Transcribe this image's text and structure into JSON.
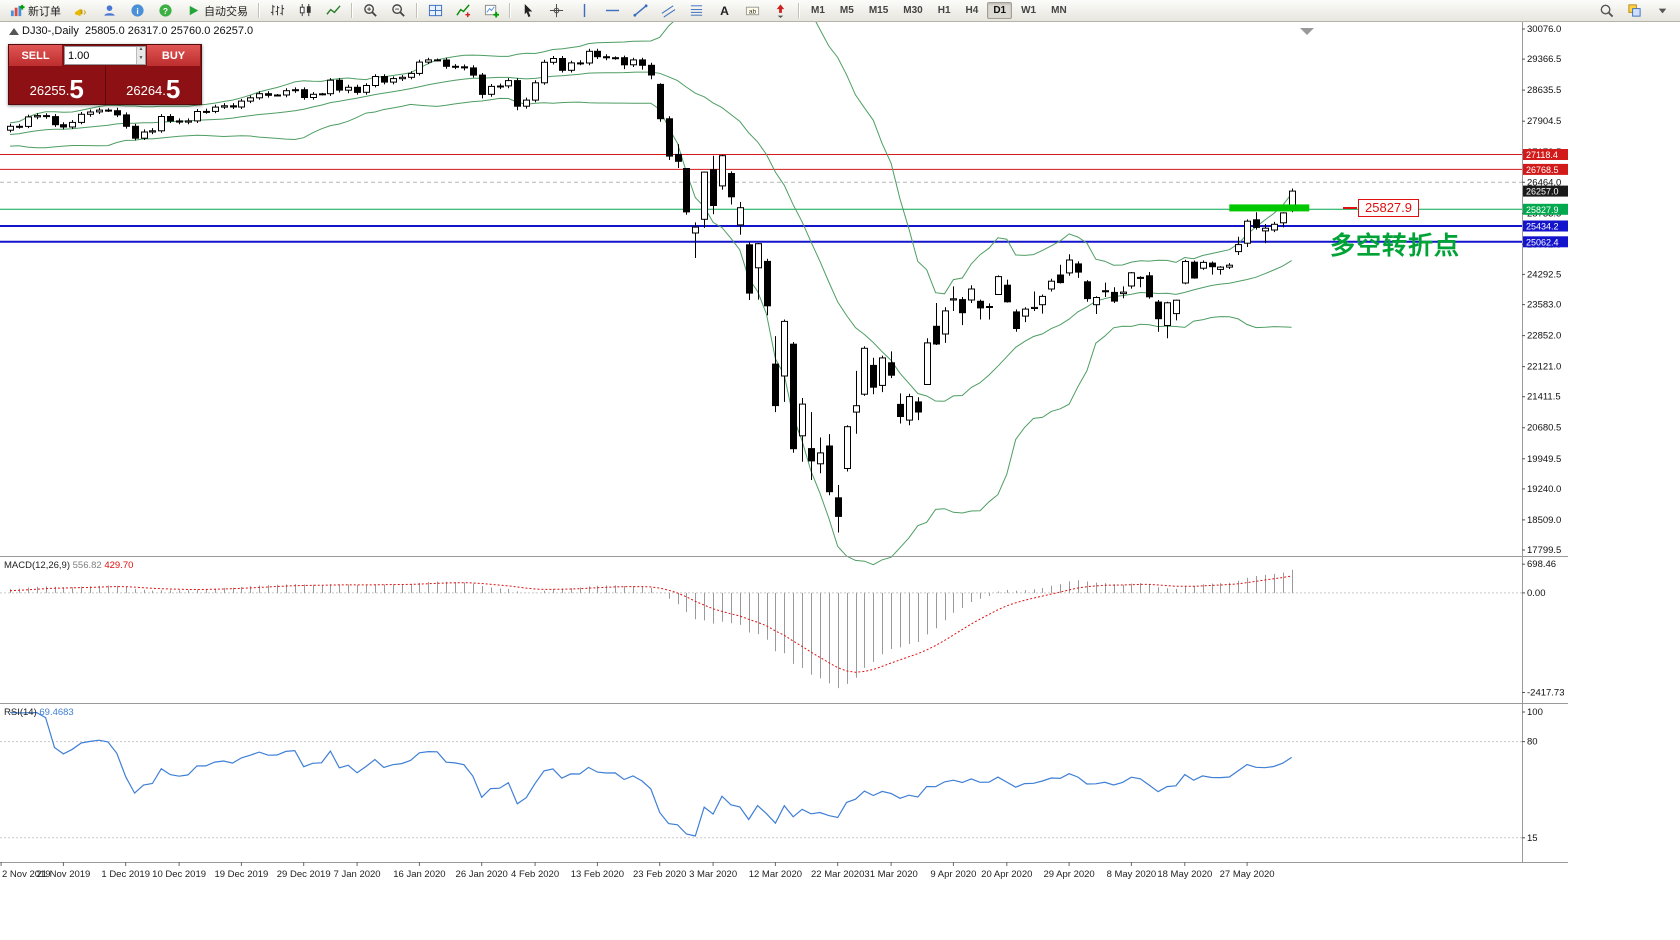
{
  "toolbar": {
    "groups": [
      {
        "name": "trade",
        "items": [
          {
            "name": "new-order-button",
            "icon": "new-order",
            "label": "新订单"
          },
          {
            "name": "alert-icon",
            "icon": "horn"
          },
          {
            "name": "profile-icon",
            "icon": "user"
          },
          {
            "name": "info-icon",
            "icon": "info"
          },
          {
            "name": "help-icon",
            "icon": "help"
          },
          {
            "name": "autotrading-button",
            "icon": "play",
            "label": "自动交易"
          }
        ]
      },
      {
        "name": "chart-type",
        "items": [
          {
            "name": "bar-chart-button",
            "icon": "bars"
          },
          {
            "name": "candlestick-chart-button",
            "icon": "candles"
          },
          {
            "name": "line-chart-button",
            "icon": "line"
          }
        ]
      },
      {
        "name": "zoom",
        "items": [
          {
            "name": "zoom-in-button",
            "icon": "zoom-in"
          },
          {
            "name": "zoom-out-button",
            "icon": "zoom-out"
          }
        ]
      },
      {
        "name": "windows",
        "items": [
          {
            "name": "tile-windows-button",
            "icon": "tile"
          },
          {
            "name": "indicators-button",
            "icon": "indicator"
          },
          {
            "name": "new-chart-button",
            "icon": "new-chart"
          }
        ]
      },
      {
        "name": "drawing",
        "items": [
          {
            "name": "cursor-button",
            "icon": "cursor"
          },
          {
            "name": "crosshair-button",
            "icon": "crosshair"
          },
          {
            "name": "vertical-line-button",
            "icon": "vline"
          },
          {
            "name": "horizontal-line-button",
            "icon": "hline"
          },
          {
            "name": "trendline-button",
            "icon": "trend"
          },
          {
            "name": "channel-button",
            "icon": "channel"
          },
          {
            "name": "fibonacci-button",
            "icon": "fib"
          },
          {
            "name": "text-button",
            "icon": "textA"
          },
          {
            "name": "text-label-button",
            "icon": "label"
          },
          {
            "name": "arrows-button",
            "icon": "arrow"
          }
        ]
      }
    ],
    "timeframes": [
      {
        "label": "M1"
      },
      {
        "label": "M5"
      },
      {
        "label": "M15"
      },
      {
        "label": "M30"
      },
      {
        "label": "H1"
      },
      {
        "label": "H4"
      },
      {
        "label": "D1",
        "active": true
      },
      {
        "label": "W1"
      },
      {
        "label": "MN"
      }
    ],
    "right_items": [
      {
        "name": "search-button",
        "icon": "search"
      },
      {
        "name": "windows-list-button",
        "icon": "windows"
      },
      {
        "name": "more-button",
        "icon": "caret"
      }
    ]
  },
  "trade_panel": {
    "sell_label": "SELL",
    "buy_label": "BUY",
    "volume": "1.00",
    "sell_price": "26255.5",
    "buy_price": "26264.5",
    "sell_main": "26255.",
    "sell_pip": "5",
    "buy_main": "26264.",
    "buy_pip": "5"
  },
  "colors": {
    "resistance_red": "#d21a1a",
    "support_green": "#00a84e",
    "support_blue": "#1414cc",
    "bollinger": "#4e9e63",
    "macd_hist": "#9a9a9a",
    "macd_signal": "#dd1111",
    "rsi": "#3f7fd6",
    "highlight_green": "#00c800",
    "annotation_green": "#00a335",
    "annotation_red": "#e01010",
    "current_price_bg": "#1a1a1a",
    "dashed_gray": "#b5b5b5"
  },
  "chart_data": {
    "type": "candlestick",
    "header": "DJ30-,Daily  25805.0 26317.0 25760.0 26257.0",
    "symbol_period": "DJ30-,Daily",
    "ohlc_header": [
      25805.0,
      26317.0,
      25760.0,
      26257.0
    ],
    "visible_from": 8,
    "price_axis": {
      "ticks": [
        30076.0,
        29366.5,
        28635.5,
        27904.5,
        27173.5,
        26464.0,
        25733.5,
        25002.5,
        24292.5,
        23583.0,
        22852.0,
        22121.0,
        21411.5,
        20680.5,
        19949.5,
        19240.0,
        18509.0,
        17799.5
      ],
      "current": {
        "v": 26257.0,
        "label": "26257.0"
      }
    },
    "hlines": [
      {
        "price": 27118.4,
        "label": "27118.4",
        "colorKey": "resistance_red",
        "width": 1,
        "style": "solid"
      },
      {
        "price": 26768.5,
        "label": "26768.5",
        "colorKey": "resistance_red",
        "width": 1,
        "style": "solid"
      },
      {
        "price": 26464.0,
        "label": "",
        "colorKey": "dashed_gray",
        "width": 1,
        "style": "dashed"
      },
      {
        "price": 25827.9,
        "label": "25827.9",
        "colorKey": "support_green",
        "width": 1,
        "style": "solid"
      },
      {
        "price": 25434.2,
        "label": "25434.2",
        "colorKey": "support_blue",
        "width": 2,
        "style": "solid"
      },
      {
        "price": 25062.4,
        "label": "25062.4",
        "colorKey": "support_blue",
        "width": 2,
        "style": "solid"
      }
    ],
    "green_bar": {
      "i_from": 145,
      "price": 25860,
      "width": 80,
      "height": 7
    },
    "annotations": [
      {
        "type": "price_label",
        "text": "25827.9",
        "color": "#e01010"
      },
      {
        "type": "text",
        "text": "多空转折点",
        "color": "#00a335"
      }
    ],
    "bollinger": {
      "period": 20,
      "deviation": 2
    },
    "macd": {
      "label": "MACD(12,26,9)",
      "value_main": "556.82",
      "value_signal": "429.70",
      "fast": 12,
      "slow": 26,
      "signal": 9,
      "scale": [
        {
          "v": 698.46,
          "label": "698.46"
        },
        {
          "v": 0,
          "label": "0.00"
        },
        {
          "v": -2417.73,
          "label": "-2417.73"
        }
      ],
      "range": [
        -2600,
        800
      ]
    },
    "rsi": {
      "label": "RSI(14)",
      "value": "69.4683",
      "period": 14,
      "scale": [
        {
          "v": 100,
          "label": "100"
        },
        {
          "v": 80,
          "label": "80"
        },
        {
          "v": 15,
          "label": "15"
        }
      ],
      "levels": [
        80,
        15
      ],
      "range": [
        0,
        100
      ]
    },
    "time_axis": [
      {
        "label": "2 Nov 2019",
        "i": 7
      },
      {
        "label": "21 Nov 2019",
        "i": 14
      },
      {
        "label": "1 Dec 2019",
        "i": 21
      },
      {
        "label": "10 Dec 2019",
        "i": 27
      },
      {
        "label": "19 Dec 2019",
        "i": 34
      },
      {
        "label": "29 Dec 2019",
        "i": 41
      },
      {
        "label": "7 Jan 2020",
        "i": 47
      },
      {
        "label": "16 Jan 2020",
        "i": 54
      },
      {
        "label": "26 Jan 2020",
        "i": 61
      },
      {
        "label": "4 Feb 2020",
        "i": 67
      },
      {
        "label": "13 Feb 2020",
        "i": 74
      },
      {
        "label": "23 Feb 2020",
        "i": 81
      },
      {
        "label": "3 Mar 2020",
        "i": 87
      },
      {
        "label": "12 Mar 2020",
        "i": 94
      },
      {
        "label": "22 Mar 2020",
        "i": 101
      },
      {
        "label": "31 Mar 2020",
        "i": 107
      },
      {
        "label": "9 Apr 2020",
        "i": 114
      },
      {
        "label": "20 Apr 2020",
        "i": 120
      },
      {
        "label": "29 Apr 2020",
        "i": 127
      },
      {
        "label": "8 May 2020",
        "i": 134
      },
      {
        "label": "18 May 2020",
        "i": 140
      },
      {
        "label": "27 May 2020",
        "i": 147
      }
    ],
    "candles": [
      [
        27300,
        27390,
        27240,
        27347
      ],
      [
        27347,
        27510,
        27300,
        27462
      ],
      [
        27462,
        27550,
        27410,
        27493
      ],
      [
        27493,
        27550,
        27440,
        27492
      ],
      [
        27492,
        27720,
        27450,
        27675
      ],
      [
        27675,
        27740,
        27620,
        27681
      ],
      [
        27681,
        27750,
        27630,
        27691
      ],
      [
        27691,
        27750,
        27640,
        27692
      ],
      [
        27692,
        27840,
        27640,
        27784
      ],
      [
        27784,
        27840,
        27730,
        27782
      ],
      [
        27782,
        28060,
        27740,
        28005
      ],
      [
        28005,
        28090,
        27950,
        28036
      ],
      [
        28036,
        28090,
        27960,
        28012
      ],
      [
        28012,
        28070,
        27770,
        27821
      ],
      [
        27821,
        27880,
        27710,
        27766
      ],
      [
        27766,
        27930,
        27720,
        27875
      ],
      [
        27875,
        28120,
        27830,
        28066
      ],
      [
        28066,
        28180,
        28010,
        28121
      ],
      [
        28121,
        28220,
        28070,
        28164
      ],
      [
        28164,
        28210,
        28120,
        28150
      ],
      [
        28150,
        28220,
        28000,
        28051
      ],
      [
        28051,
        28110,
        27730,
        27783
      ],
      [
        27783,
        27840,
        27450,
        27503
      ],
      [
        27503,
        27710,
        27460,
        27650
      ],
      [
        27650,
        27740,
        27600,
        27678
      ],
      [
        27678,
        28070,
        27630,
        28015
      ],
      [
        28015,
        28070,
        27860,
        27910
      ],
      [
        27910,
        27970,
        27830,
        27882
      ],
      [
        27882,
        27970,
        27830,
        27911
      ],
      [
        27911,
        28190,
        27860,
        28132
      ],
      [
        28132,
        28200,
        28080,
        28135
      ],
      [
        28135,
        28290,
        28090,
        28236
      ],
      [
        28236,
        28330,
        28190,
        28267
      ],
      [
        28267,
        28330,
        28190,
        28239
      ],
      [
        28239,
        28430,
        28190,
        28377
      ],
      [
        28377,
        28510,
        28330,
        28455
      ],
      [
        28455,
        28610,
        28410,
        28552
      ],
      [
        28552,
        28610,
        28460,
        28515
      ],
      [
        28515,
        28545,
        28490,
        28520
      ],
      [
        28520,
        28680,
        28470,
        28621
      ],
      [
        28621,
        28700,
        28570,
        28645
      ],
      [
        28645,
        28700,
        28410,
        28462
      ],
      [
        28462,
        28590,
        28410,
        28538
      ],
      [
        28538,
        28570,
        28510,
        28550
      ],
      [
        28550,
        28920,
        28500,
        28869
      ],
      [
        28869,
        28920,
        28580,
        28635
      ],
      [
        28635,
        28760,
        28560,
        28703
      ],
      [
        28703,
        28760,
        28530,
        28584
      ],
      [
        28584,
        28800,
        28530,
        28745
      ],
      [
        28745,
        29010,
        28700,
        28957
      ],
      [
        28957,
        29010,
        28770,
        28824
      ],
      [
        28824,
        28960,
        28770,
        28907
      ],
      [
        28907,
        28990,
        28850,
        28939
      ],
      [
        28939,
        29080,
        28890,
        29030
      ],
      [
        29030,
        29350,
        28980,
        29297
      ],
      [
        29297,
        29400,
        29250,
        29348
      ],
      [
        29348,
        29380,
        29310,
        29345
      ],
      [
        29345,
        29400,
        29140,
        29196
      ],
      [
        29196,
        29250,
        29130,
        29186
      ],
      [
        29186,
        29240,
        29100,
        29160
      ],
      [
        29160,
        29220,
        28930,
        28990
      ],
      [
        28990,
        29040,
        28440,
        28536
      ],
      [
        28536,
        28780,
        28480,
        28723
      ],
      [
        28723,
        28790,
        28660,
        28734
      ],
      [
        28734,
        28920,
        28680,
        28859
      ],
      [
        28859,
        28920,
        28160,
        28256
      ],
      [
        28256,
        28460,
        28200,
        28400
      ],
      [
        28400,
        28870,
        28350,
        28808
      ],
      [
        28808,
        29350,
        28760,
        29291
      ],
      [
        29291,
        29440,
        29240,
        29380
      ],
      [
        29380,
        29440,
        29050,
        29103
      ],
      [
        29103,
        29330,
        29050,
        29277
      ],
      [
        29277,
        29340,
        29220,
        29276
      ],
      [
        29276,
        29610,
        29220,
        29551
      ],
      [
        29551,
        29610,
        29370,
        29423
      ],
      [
        29423,
        29480,
        29340,
        29398
      ],
      [
        29398,
        29430,
        29350,
        29400
      ],
      [
        29400,
        29450,
        29130,
        29232
      ],
      [
        29232,
        29400,
        29180,
        29348
      ],
      [
        29348,
        29400,
        29120,
        29220
      ],
      [
        29220,
        29280,
        28890,
        28992
      ],
      [
        28770,
        28800,
        27890,
        27961
      ],
      [
        27960,
        28020,
        26990,
        27081
      ],
      [
        27120,
        27360,
        26800,
        26958
      ],
      [
        26790,
        26800,
        25700,
        25767
      ],
      [
        25270,
        25520,
        24680,
        25409
      ],
      [
        25590,
        26710,
        25390,
        26703
      ],
      [
        26760,
        27090,
        25710,
        25917
      ],
      [
        26380,
        27110,
        26290,
        27091
      ],
      [
        26670,
        26720,
        25940,
        26121
      ],
      [
        25460,
        26000,
        25230,
        25865
      ],
      [
        24990,
        25050,
        23690,
        23851
      ],
      [
        24450,
        25030,
        23700,
        25018
      ],
      [
        24600,
        24660,
        23330,
        23553
      ],
      [
        22180,
        22840,
        21050,
        21201
      ],
      [
        21900,
        23230,
        21290,
        23186
      ],
      [
        22650,
        22700,
        20090,
        20188
      ],
      [
        20490,
        21380,
        19880,
        21237
      ],
      [
        20190,
        21050,
        19450,
        19899
      ],
      [
        19830,
        20450,
        19610,
        20087
      ],
      [
        20250,
        20530,
        19090,
        19174
      ],
      [
        19030,
        19330,
        18213,
        18592
      ],
      [
        19720,
        20740,
        19650,
        20705
      ],
      [
        21050,
        22020,
        20540,
        21200
      ],
      [
        21470,
        22600,
        21430,
        22552
      ],
      [
        22150,
        22330,
        21470,
        21637
      ],
      [
        21680,
        22380,
        21520,
        22327
      ],
      [
        22210,
        22480,
        21850,
        21917
      ],
      [
        21230,
        21490,
        20780,
        20944
      ],
      [
        20860,
        21480,
        20740,
        21413
      ],
      [
        21290,
        21400,
        20860,
        21053
      ],
      [
        21700,
        22790,
        21690,
        22680
      ],
      [
        23070,
        23620,
        22630,
        22654
      ],
      [
        22890,
        23520,
        22680,
        23434
      ],
      [
        23690,
        24010,
        23430,
        23719
      ],
      [
        23700,
        23760,
        23100,
        23391
      ],
      [
        23690,
        24040,
        23620,
        23950
      ],
      [
        23660,
        23700,
        23230,
        23504
      ],
      [
        23520,
        23610,
        23230,
        23537
      ],
      [
        23820,
        24270,
        23810,
        24242
      ],
      [
        24040,
        24170,
        23630,
        23650
      ],
      [
        23410,
        23470,
        22940,
        23018
      ],
      [
        23310,
        23520,
        23170,
        23476
      ],
      [
        23490,
        23890,
        23430,
        23515
      ],
      [
        23580,
        23820,
        23370,
        23775
      ],
      [
        23950,
        24190,
        23890,
        24134
      ],
      [
        24280,
        24520,
        24080,
        24102
      ],
      [
        24330,
        24770,
        24260,
        24634
      ],
      [
        24540,
        24600,
        24210,
        24346
      ],
      [
        24120,
        24160,
        23650,
        23724
      ],
      [
        23580,
        23780,
        23360,
        23749
      ],
      [
        23910,
        24100,
        23760,
        23883
      ],
      [
        23870,
        23990,
        23620,
        23665
      ],
      [
        23840,
        24010,
        23730,
        23876
      ],
      [
        24020,
        24350,
        23960,
        24331
      ],
      [
        24200,
        24250,
        23990,
        24222
      ],
      [
        24260,
        24350,
        23720,
        23765
      ],
      [
        23640,
        23690,
        22940,
        23248
      ],
      [
        23090,
        23650,
        22790,
        23625
      ],
      [
        23370,
        23700,
        23210,
        23685
      ],
      [
        24090,
        24640,
        24060,
        24597
      ],
      [
        24580,
        24620,
        24190,
        24207
      ],
      [
        24440,
        24620,
        24400,
        24576
      ],
      [
        24560,
        24600,
        24290,
        24474
      ],
      [
        24410,
        24490,
        24290,
        24465
      ],
      [
        24465,
        24560,
        24420,
        24510
      ],
      [
        24830,
        25180,
        24750,
        24995
      ],
      [
        25030,
        25590,
        24940,
        25548
      ],
      [
        25580,
        25760,
        25350,
        25401
      ],
      [
        25320,
        25480,
        25030,
        25383
      ],
      [
        25340,
        25530,
        25290,
        25475
      ],
      [
        25510,
        25760,
        25400,
        25743
      ],
      [
        25805,
        26317,
        25760,
        26257
      ]
    ]
  }
}
